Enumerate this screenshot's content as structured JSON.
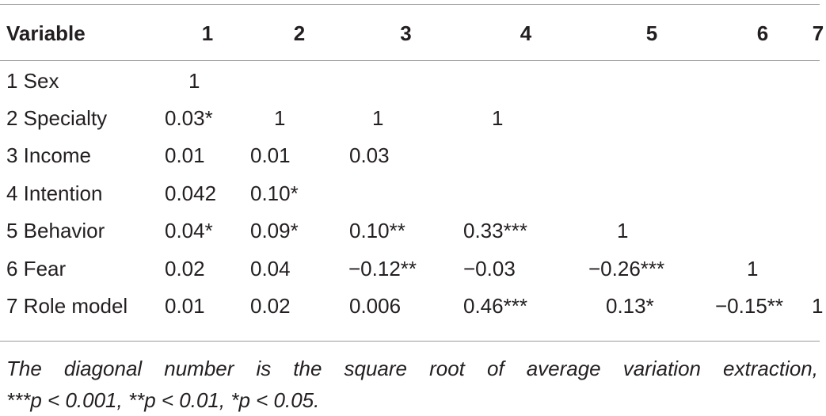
{
  "table": {
    "headers": [
      "Variable",
      "1",
      "2",
      "3",
      "4",
      "5",
      "6",
      "7"
    ],
    "rows": [
      {
        "label": "1 Sex",
        "cells": [
          "1",
          "",
          "",
          "",
          "",
          "",
          ""
        ]
      },
      {
        "label": "2 Specialty",
        "cells": [
          "0.03*",
          "1",
          "1",
          "1",
          "",
          "",
          ""
        ]
      },
      {
        "label": "3 Income",
        "cells": [
          "0.01",
          "0.01",
          "0.03",
          "",
          "",
          "",
          ""
        ]
      },
      {
        "label": "4 Intention",
        "cells": [
          "0.042",
          "0.10*",
          "",
          "",
          "",
          "",
          ""
        ]
      },
      {
        "label": "5 Behavior",
        "cells": [
          "0.04*",
          "0.09*",
          "0.10**",
          "0.33***",
          "1",
          "",
          ""
        ]
      },
      {
        "label": "6 Fear",
        "cells": [
          "0.02",
          "0.04",
          "−0.12**",
          "−0.03",
          "−0.26***",
          "1",
          ""
        ]
      },
      {
        "label": "7 Role model",
        "cells": [
          "0.01",
          "0.02",
          "0.006",
          "0.46***",
          "0.13*",
          "−0.15**",
          "1"
        ]
      }
    ]
  },
  "footnote": {
    "line1": "The diagonal number is the square root of average variation extraction,",
    "line2": "***p < 0.001, **p < 0.01, *p < 0.05."
  }
}
